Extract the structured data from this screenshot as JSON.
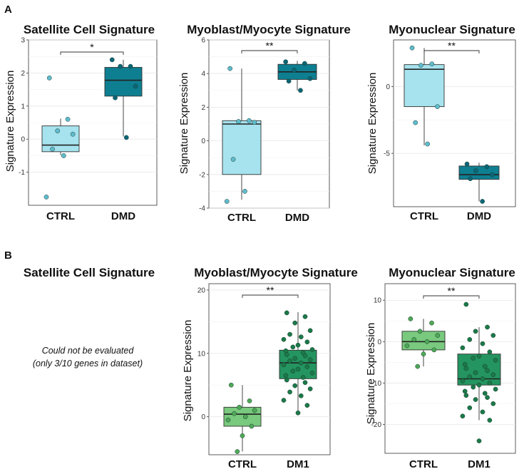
{
  "panels": {
    "A": "A",
    "B": "B",
    "B_na_title": "Satellite Cell Signature",
    "B_na_note_1": "Could not be evaluated",
    "B_na_note_2": "(only 3/10 genes in dataset)"
  },
  "colors": {
    "dmd_ctrl_box": "#a6e3ee",
    "dmd_ctrl_pt": "#5fbccc",
    "dmd_box": "#0e7f91",
    "dmd_pt": "#0b6676",
    "dm1_ctrl_box": "#79c97e",
    "dm1_ctrl_pt": "#4ea857",
    "dm1_box": "#249560",
    "dm1_pt": "#1a7a48"
  },
  "chart_data": [
    {
      "id": "a1",
      "type": "box",
      "title": "Satellite Cell Signature",
      "ylabel": "Signature Expression",
      "categories": [
        "CTRL",
        "DMD"
      ],
      "ylim": [
        -2,
        3
      ],
      "yticks": [
        -1,
        0,
        1,
        2,
        3
      ],
      "significance": "*",
      "groups": [
        {
          "name": "CTRL",
          "q1": -0.38,
          "median": -0.18,
          "q3": 0.4,
          "whisker_low": -0.48,
          "whisker_high": 0.62,
          "points": [
            1.85,
            0.6,
            0.25,
            0.15,
            -0.3,
            -0.5,
            -1.75
          ]
        },
        {
          "name": "DMD",
          "q1": 1.3,
          "median": 1.78,
          "q3": 2.17,
          "whisker_low": 0.08,
          "whisker_high": 2.4,
          "points": [
            2.4,
            2.2,
            2.2,
            1.6,
            1.25,
            0.05
          ]
        }
      ]
    },
    {
      "id": "a2",
      "type": "box",
      "title": "Myoblast/Myocyte Signature",
      "ylabel": "Signature Expression",
      "categories": [
        "CTRL",
        "DMD"
      ],
      "ylim": [
        -4,
        6
      ],
      "yticks": [
        -4,
        -2,
        0,
        2,
        4,
        6
      ],
      "significance": "**",
      "groups": [
        {
          "name": "CTRL",
          "q1": -2.0,
          "median": 1.0,
          "q3": 1.2,
          "whisker_low": -3.5,
          "whisker_high": 4.3,
          "points": [
            4.3,
            1.2,
            1.15,
            1.1,
            -1.1,
            -3.0,
            -3.6
          ]
        },
        {
          "name": "DMD",
          "q1": 3.65,
          "median": 4.1,
          "q3": 4.55,
          "whisker_low": 3.0,
          "whisker_high": 4.75,
          "points": [
            4.7,
            4.6,
            4.2,
            3.7,
            3.55,
            3.0
          ]
        }
      ]
    },
    {
      "id": "a3",
      "type": "box",
      "title": "Myonuclear Signature",
      "ylabel": "Signature Expression",
      "categories": [
        "CTRL",
        "DMD"
      ],
      "ylim": [
        -9,
        3.5
      ],
      "yticks": [
        -5,
        0
      ],
      "significance": "**",
      "groups": [
        {
          "name": "CTRL",
          "q1": -1.5,
          "median": 1.3,
          "q3": 1.65,
          "whisker_low": -4.4,
          "whisker_high": 2.9,
          "points": [
            2.9,
            1.7,
            1.6,
            -1.5,
            -2.7,
            -4.3
          ]
        },
        {
          "name": "DMD",
          "q1": -6.95,
          "median": -6.6,
          "q3": -5.95,
          "whisker_low": -8.6,
          "whisker_high": -5.7,
          "points": [
            -5.8,
            -6.0,
            -6.3,
            -6.6,
            -6.9,
            -8.6
          ]
        }
      ]
    },
    {
      "id": "b2",
      "type": "box",
      "title": "Myoblast/Myocyte Signature",
      "ylabel": "Signature Expression",
      "categories": [
        "CTRL",
        "DM1"
      ],
      "ylim": [
        -6,
        21
      ],
      "yticks": [
        0,
        10,
        20
      ],
      "significance": "**",
      "groups": [
        {
          "name": "CTRL",
          "q1": -1.5,
          "median": 0.4,
          "q3": 1.5,
          "whisker_low": -5.5,
          "whisker_high": 5.0,
          "points": [
            5.0,
            2.5,
            1.5,
            1.0,
            0.5,
            0.0,
            -0.5,
            -1.5,
            -3.0,
            -5.5
          ]
        },
        {
          "name": "DM1",
          "q1": 6.0,
          "median": 8.5,
          "q3": 10.5,
          "whisker_low": 0.5,
          "whisker_high": 16.5,
          "points": [
            16.4,
            15.8,
            14.8,
            13.6,
            13.0,
            12.6,
            12.2,
            11.8,
            11.3,
            11.0,
            10.6,
            10.4,
            10.1,
            9.8,
            9.6,
            9.2,
            9.0,
            8.8,
            8.5,
            8.2,
            7.9,
            7.5,
            7.2,
            6.9,
            6.5,
            6.2,
            5.8,
            5.4,
            4.9,
            4.4,
            3.9,
            3.3,
            2.6,
            1.8,
            0.6
          ]
        }
      ]
    },
    {
      "id": "b3",
      "type": "box",
      "title": "Myonuclear Signature",
      "ylabel": "Signature Expression",
      "categories": [
        "CTRL",
        "DM1"
      ],
      "ylim": [
        -27,
        14
      ],
      "yticks": [
        -20,
        -10,
        0,
        10
      ],
      "significance": "**",
      "groups": [
        {
          "name": "CTRL",
          "q1": -2.0,
          "median": 0.0,
          "q3": 2.5,
          "whisker_low": -6.0,
          "whisker_high": 5.5,
          "points": [
            5.5,
            4.5,
            2.5,
            1.5,
            0.5,
            0.0,
            -1.0,
            -2.0,
            -3.0,
            -6.0
          ]
        },
        {
          "name": "DM1",
          "q1": -10.5,
          "median": -9.0,
          "q3": -3.0,
          "whisker_low": -19.0,
          "whisker_high": 3.5,
          "points": [
            9.0,
            3.5,
            2.5,
            1.5,
            0.5,
            -0.5,
            -1.5,
            -2.5,
            -3.5,
            -4.0,
            -4.5,
            -5.5,
            -6.0,
            -6.5,
            -7.0,
            -7.5,
            -8.0,
            -8.5,
            -9.0,
            -9.5,
            -10.0,
            -10.5,
            -11.0,
            -11.5,
            -12.0,
            -12.5,
            -13.0,
            -13.5,
            -14.0,
            -15.0,
            -16.0,
            -17.0,
            -18.0,
            -19.0,
            -24.0
          ]
        }
      ]
    }
  ]
}
